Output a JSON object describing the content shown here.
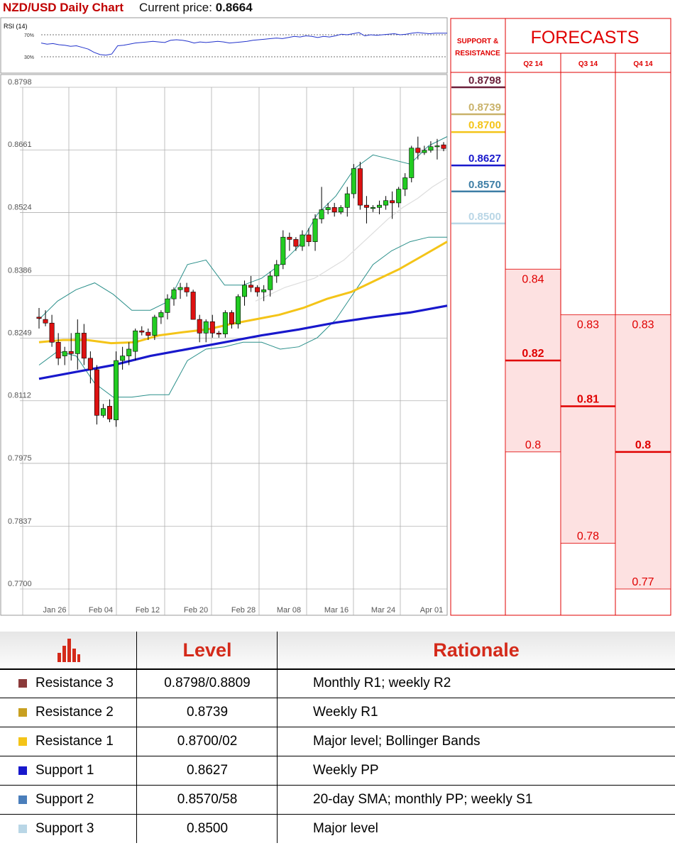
{
  "header": {
    "title": "NZD/USD Daily Chart",
    "price_label": "Current price:",
    "price_value": "0.8664"
  },
  "colors": {
    "bull": "#22cc22",
    "bear": "#dd1111",
    "sma_slow": "#1818cc",
    "sma_mid": "#f4c418",
    "bollinger": "#2a8f8a",
    "sma_fast": "#dddddd",
    "forecast_red": "#e00000",
    "forecast_fill": "#fde1e1"
  },
  "rsi": {
    "label": "RSI (14)",
    "levels": [
      "70%",
      "30%"
    ],
    "values": [
      55,
      53,
      54,
      52,
      51,
      49,
      50,
      47,
      44,
      38,
      34,
      33,
      35,
      50,
      51,
      53,
      55,
      56,
      57,
      58,
      57,
      56,
      60,
      61,
      60,
      58,
      55,
      57,
      56,
      57,
      58,
      57,
      55,
      56,
      57,
      58,
      60,
      61,
      62,
      63,
      64,
      63,
      65,
      67,
      66,
      68,
      67,
      65,
      67,
      66,
      68,
      71,
      70,
      72,
      74,
      68,
      70,
      69,
      70,
      71,
      72,
      70,
      71,
      73,
      74,
      73,
      72,
      73,
      73,
      73
    ]
  },
  "chart_data": {
    "type": "candlestick",
    "title": "NZD/USD Daily Chart",
    "ylim": [
      0.77,
      0.8798
    ],
    "y_ticks": [
      "0.8798",
      "0.8661",
      "0.8524",
      "0.8386",
      "0.8249",
      "0.8112",
      "0.7975",
      "0.7837",
      "0.7700"
    ],
    "x_ticks": [
      "Jan 26",
      "Feb 04",
      "Feb 12",
      "Feb 20",
      "Feb 28",
      "Mar 08",
      "Mar 16",
      "Mar 24",
      "Apr 01"
    ],
    "candles": [
      [
        0.8295,
        0.8315,
        0.827,
        0.8292
      ],
      [
        0.829,
        0.831,
        0.8275,
        0.8282
      ],
      [
        0.8282,
        0.83,
        0.823,
        0.824
      ],
      [
        0.824,
        0.826,
        0.819,
        0.8205
      ],
      [
        0.821,
        0.823,
        0.819,
        0.822
      ],
      [
        0.822,
        0.826,
        0.82,
        0.8215
      ],
      [
        0.8215,
        0.829,
        0.818,
        0.826
      ],
      [
        0.826,
        0.828,
        0.819,
        0.8205
      ],
      [
        0.8205,
        0.822,
        0.815,
        0.818
      ],
      [
        0.818,
        0.819,
        0.806,
        0.808
      ],
      [
        0.808,
        0.8105,
        0.8075,
        0.8095
      ],
      [
        0.81,
        0.8115,
        0.8065,
        0.8072
      ],
      [
        0.807,
        0.822,
        0.8055,
        0.82
      ],
      [
        0.82,
        0.823,
        0.818,
        0.821
      ],
      [
        0.821,
        0.824,
        0.819,
        0.8225
      ],
      [
        0.822,
        0.827,
        0.82,
        0.8265
      ],
      [
        0.8265,
        0.8275,
        0.8255,
        0.8262
      ],
      [
        0.8262,
        0.827,
        0.8245,
        0.8255
      ],
      [
        0.8255,
        0.83,
        0.8245,
        0.8295
      ],
      [
        0.8295,
        0.831,
        0.828,
        0.8305
      ],
      [
        0.8305,
        0.8345,
        0.829,
        0.8335
      ],
      [
        0.8335,
        0.836,
        0.832,
        0.8355
      ],
      [
        0.8355,
        0.837,
        0.8335,
        0.836
      ],
      [
        0.836,
        0.837,
        0.834,
        0.835
      ],
      [
        0.835,
        0.8355,
        0.829,
        0.829
      ],
      [
        0.829,
        0.83,
        0.824,
        0.826
      ],
      [
        0.826,
        0.829,
        0.824,
        0.8285
      ],
      [
        0.8285,
        0.83,
        0.825,
        0.826
      ],
      [
        0.826,
        0.8265,
        0.825,
        0.8258
      ],
      [
        0.8258,
        0.831,
        0.825,
        0.8305
      ],
      [
        0.8305,
        0.831,
        0.827,
        0.828
      ],
      [
        0.828,
        0.8345,
        0.827,
        0.834
      ],
      [
        0.834,
        0.8375,
        0.832,
        0.8365
      ],
      [
        0.8365,
        0.8385,
        0.835,
        0.836
      ],
      [
        0.836,
        0.8365,
        0.834,
        0.835
      ],
      [
        0.835,
        0.8365,
        0.833,
        0.8355
      ],
      [
        0.8355,
        0.8395,
        0.834,
        0.8385
      ],
      [
        0.8385,
        0.842,
        0.837,
        0.841
      ],
      [
        0.841,
        0.8485,
        0.84,
        0.847
      ],
      [
        0.847,
        0.848,
        0.844,
        0.8465
      ],
      [
        0.8465,
        0.847,
        0.844,
        0.845
      ],
      [
        0.845,
        0.8485,
        0.844,
        0.8475
      ],
      [
        0.8475,
        0.849,
        0.845,
        0.846
      ],
      [
        0.846,
        0.852,
        0.844,
        0.851
      ],
      [
        0.851,
        0.858,
        0.85,
        0.853
      ],
      [
        0.853,
        0.8545,
        0.852,
        0.8535
      ],
      [
        0.8535,
        0.8545,
        0.8515,
        0.8525
      ],
      [
        0.8525,
        0.854,
        0.852,
        0.8535
      ],
      [
        0.8535,
        0.858,
        0.8515,
        0.8565
      ],
      [
        0.8565,
        0.863,
        0.8555,
        0.862
      ],
      [
        0.862,
        0.8635,
        0.853,
        0.854
      ],
      [
        0.854,
        0.856,
        0.85,
        0.8535
      ],
      [
        0.8535,
        0.854,
        0.8525,
        0.8535
      ],
      [
        0.8535,
        0.855,
        0.852,
        0.854
      ],
      [
        0.854,
        0.856,
        0.853,
        0.855
      ],
      [
        0.855,
        0.857,
        0.851,
        0.8545
      ],
      [
        0.8545,
        0.858,
        0.8535,
        0.8575
      ],
      [
        0.8575,
        0.861,
        0.856,
        0.86
      ],
      [
        0.86,
        0.867,
        0.859,
        0.8665
      ],
      [
        0.8665,
        0.869,
        0.864,
        0.8655
      ],
      [
        0.8655,
        0.867,
        0.865,
        0.866
      ],
      [
        0.866,
        0.868,
        0.8655,
        0.8668
      ],
      [
        0.8668,
        0.8685,
        0.864,
        0.867
      ],
      [
        0.8672,
        0.8678,
        0.8658,
        0.8664
      ]
    ],
    "sma_slow": [
      0.816,
      0.8175,
      0.819,
      0.821,
      0.8225,
      0.824,
      0.8255,
      0.8268,
      0.8283,
      0.8295,
      0.8305,
      0.832
    ],
    "sma_mid": [
      0.824,
      0.8245,
      0.8245,
      0.8238,
      0.824,
      0.8255,
      0.8262,
      0.8268,
      0.828,
      0.829,
      0.83,
      0.8315,
      0.8335,
      0.835,
      0.8375,
      0.84,
      0.843,
      0.846
    ],
    "bb_upper": [
      0.829,
      0.833,
      0.8355,
      0.837,
      0.8345,
      0.831,
      0.831,
      0.833,
      0.841,
      0.842,
      0.8365,
      0.8365,
      0.838,
      0.841,
      0.845,
      0.852,
      0.856,
      0.862,
      0.865,
      0.864,
      0.863,
      0.867,
      0.869
    ],
    "bb_lower": [
      0.819,
      0.822,
      0.821,
      0.815,
      0.812,
      0.812,
      0.8125,
      0.8125,
      0.82,
      0.8225,
      0.823,
      0.824,
      0.824,
      0.8225,
      0.823,
      0.825,
      0.829,
      0.835,
      0.841,
      0.844,
      0.846,
      0.847,
      0.847
    ],
    "sma_fast": [
      0.833,
      0.8345,
      0.836,
      0.837,
      0.838,
      0.84,
      0.842,
      0.845,
      0.848,
      0.851,
      0.8535,
      0.8555,
      0.858,
      0.86
    ]
  },
  "sr_panel": {
    "label_line1": "SUPPORT &",
    "label_line2": "RESISTANCE",
    "levels": [
      {
        "label": "0.8798",
        "value": 0.8798,
        "color": "#6b1f3a"
      },
      {
        "label": "0.8739",
        "value": 0.8739,
        "color": "#c9b26a"
      },
      {
        "label": "0.8700",
        "value": 0.87,
        "color": "#f4c418"
      },
      {
        "label": "0.8627",
        "value": 0.8627,
        "color": "#1818cc"
      },
      {
        "label": "0.8570",
        "value": 0.857,
        "color": "#3d7ea6"
      },
      {
        "label": "0.8500",
        "value": 0.85,
        "color": "#b9d6e6"
      }
    ]
  },
  "forecasts": {
    "title": "FORECASTS",
    "quarters": [
      {
        "label": "Q2 14",
        "high": 0.84,
        "mid": 0.82,
        "low": 0.8,
        "high_label": "0.84",
        "mid_label": "0.82",
        "low_label": "0.8"
      },
      {
        "label": "Q3 14",
        "high": 0.83,
        "mid": 0.81,
        "low": 0.78,
        "high_label": "0.83",
        "mid_label": "0.81",
        "low_label": "0.78"
      },
      {
        "label": "Q4 14",
        "high": 0.83,
        "mid": 0.8,
        "low": 0.77,
        "high_label": "0.83",
        "mid_label": "0.8",
        "low_label": "0.77"
      }
    ]
  },
  "table": {
    "headers": {
      "icon": "bar-chart-icon",
      "level": "Level",
      "rationale": "Rationale"
    },
    "rows": [
      {
        "name": "Resistance 3",
        "color": "#8b3a3a",
        "level": "0.8798/0.8809",
        "rationale": "Monthly R1; weekly R2"
      },
      {
        "name": "Resistance 2",
        "color": "#c8a020",
        "level": "0.8739",
        "rationale": "Weekly R1"
      },
      {
        "name": "Resistance 1",
        "color": "#f4c418",
        "level": "0.8700/02",
        "rationale": "Major level; Bollinger Bands"
      },
      {
        "name": "Support 1",
        "color": "#1818cc",
        "level": "0.8627",
        "rationale": "Weekly PP"
      },
      {
        "name": "Support 2",
        "color": "#4a7ebb",
        "level": "0.8570/58",
        "rationale": "20-day SMA; monthly PP; weekly S1"
      },
      {
        "name": "Support 3",
        "color": "#b9d6e6",
        "level": "0.8500",
        "rationale": "Major level"
      }
    ]
  }
}
